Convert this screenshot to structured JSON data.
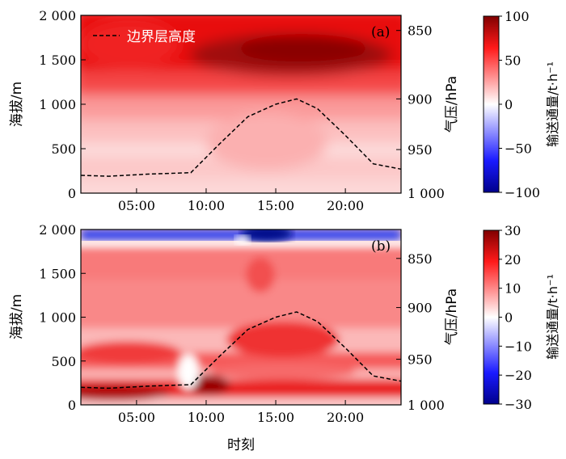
{
  "chart_data": [
    {
      "type": "heatmap",
      "panel_label": "(a)",
      "ylabel": "海拔/m",
      "y2label": "气压/hPa",
      "cbar_label": "输送通量/t·h⁻¹",
      "legend": "边界层高度",
      "xlim": [
        1,
        24
      ],
      "ylim": [
        0,
        2000
      ],
      "x_ticks": [
        5,
        10,
        15,
        20
      ],
      "x_ticklabels": [
        "05:00",
        "10:00",
        "15:00",
        "20:00"
      ],
      "y_ticks": [
        0,
        500,
        1000,
        1500,
        2000
      ],
      "y_ticklabels": [
        "0",
        "500",
        "1 000",
        "1 500",
        "2 000"
      ],
      "y2_ticks": [
        850,
        900,
        950,
        1000
      ],
      "y2_ticklabels": [
        "850",
        "900",
        "950",
        "1 000"
      ],
      "y2_tick_heights": [
        1830,
        1060,
        490,
        0
      ],
      "cbar_range": [
        -100,
        100
      ],
      "cbar_ticks": [
        -100,
        -50,
        0,
        50,
        100
      ],
      "cbar_ticklabels": [
        "−100",
        "−50",
        "0",
        "50",
        "100"
      ],
      "boundary_layer": {
        "x": [
          1,
          3,
          6,
          8.9,
          11,
          13,
          15,
          16.5,
          18,
          20,
          22,
          24
        ],
        "y": [
          200,
          190,
          215,
          230,
          560,
          860,
          1000,
          1060,
          950,
          650,
          330,
          270
        ]
      }
    },
    {
      "type": "heatmap",
      "panel_label": "(b)",
      "xlabel": "时刻",
      "ylabel": "海拔/m",
      "y2label": "气压/hPa",
      "cbar_label": "输送通量/t·h⁻¹",
      "xlim": [
        1,
        24
      ],
      "ylim": [
        0,
        2000
      ],
      "x_ticks": [
        5,
        10,
        15,
        20
      ],
      "x_ticklabels": [
        "05:00",
        "10:00",
        "15:00",
        "20:00"
      ],
      "y_ticks": [
        0,
        500,
        1000,
        1500,
        2000
      ],
      "y_ticklabels": [
        "0",
        "500",
        "1 000",
        "1 500",
        "2 000"
      ],
      "y2_ticks": [
        850,
        900,
        950,
        1000
      ],
      "y2_ticklabels": [
        "850",
        "900",
        "950",
        "1 000"
      ],
      "y2_tick_heights": [
        1670,
        1110,
        520,
        0
      ],
      "cbar_range": [
        -30,
        30
      ],
      "cbar_ticks": [
        -30,
        -20,
        -10,
        0,
        10,
        20,
        30
      ],
      "cbar_ticklabels": [
        "−30",
        "−20",
        "−10",
        "0",
        "10",
        "20",
        "30"
      ],
      "boundary_layer": {
        "x": [
          1,
          3,
          6,
          8.9,
          11,
          13,
          15,
          16.5,
          18,
          20,
          22,
          24
        ],
        "y": [
          200,
          190,
          215,
          230,
          560,
          860,
          1000,
          1060,
          950,
          650,
          330,
          270
        ]
      }
    }
  ]
}
